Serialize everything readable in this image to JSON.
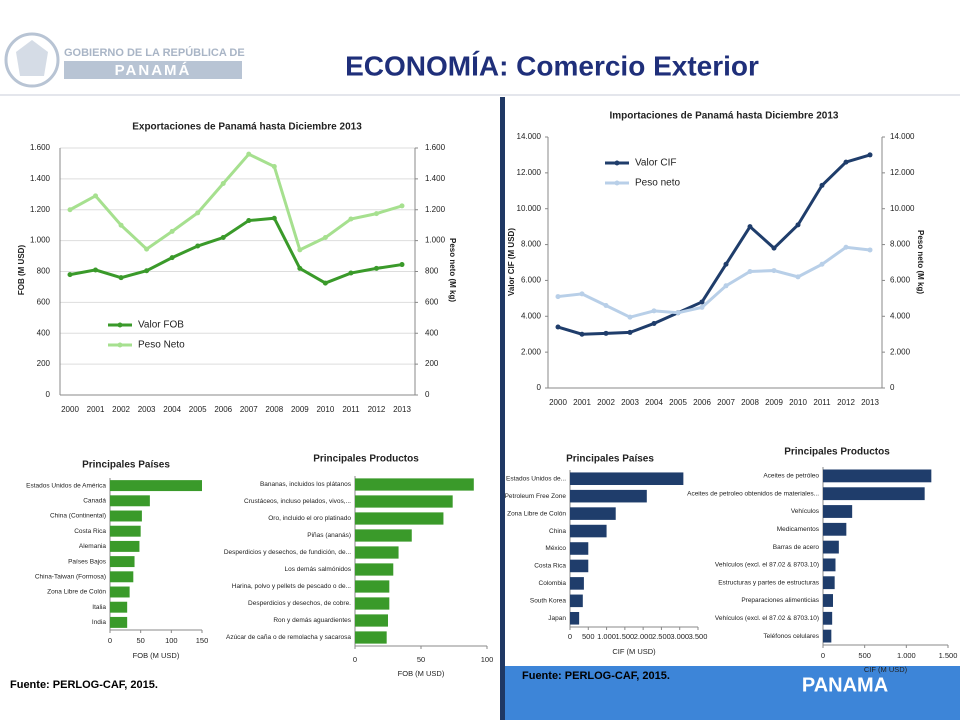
{
  "header": {
    "logo_line1": "GOBIERNO DE LA REPÚBLICA DE",
    "logo_line2": "PANAMÁ",
    "title": "ECONOMÍA: Comercio Exterior"
  },
  "footer": {
    "source_left": "Fuente: PERLOG-CAF, 2015.",
    "source_right": "Fuente: PERLOG-CAF, 2015.",
    "brand": "PANAMA"
  },
  "chart_data": [
    {
      "type": "line",
      "title": "Exportaciones de Panamá hasta Diciembre 2013",
      "categories": [
        "2000",
        "2001",
        "2002",
        "2003",
        "2004",
        "2005",
        "2006",
        "2007",
        "2008",
        "2009",
        "2010",
        "2011",
        "2012",
        "2013"
      ],
      "series": [
        {
          "name": "Valor FOB",
          "color": "#3a9a2a",
          "values": [
            780,
            810,
            760,
            805,
            890,
            965,
            1020,
            1130,
            1145,
            820,
            725,
            790,
            820,
            845
          ]
        },
        {
          "name": "Peso Neto",
          "color": "#a6e08f",
          "axis": "y2",
          "values": [
            1200,
            1290,
            1100,
            945,
            1060,
            1180,
            1370,
            1560,
            1480,
            940,
            1020,
            1140,
            1175,
            1225
          ]
        }
      ],
      "ylabel": "FOB (M USD)",
      "y2label": "Peso neto (M kg)",
      "ylim": [
        0,
        1600
      ],
      "yticks": [
        0,
        200,
        400,
        600,
        800,
        {
          "value": 1000,
          "label": "1.000"
        },
        {
          "value": 1200,
          "label": "1.200"
        },
        {
          "value": 1400,
          "label": "1.400"
        },
        {
          "value": 1600,
          "label": "1.600"
        }
      ],
      "y2lim": [
        0,
        1600
      ],
      "y2ticks": [
        0,
        200,
        400,
        600,
        800,
        {
          "value": 1000,
          "label": "1.000"
        },
        {
          "value": 1200,
          "label": "1.200"
        },
        {
          "value": 1400,
          "label": "1.400"
        },
        {
          "value": 1600,
          "label": "1.600"
        }
      ],
      "grid": true
    },
    {
      "type": "line",
      "title": "Importaciones de Panamá hasta Diciembre 2013",
      "categories": [
        "2000",
        "2001",
        "2002",
        "2003",
        "2004",
        "2005",
        "2006",
        "2007",
        "2008",
        "2009",
        "2010",
        "2011",
        "2012",
        "2013"
      ],
      "series": [
        {
          "name": "Valor CIF",
          "color": "#1f3d6b",
          "values": [
            3400,
            3000,
            3050,
            3100,
            3600,
            4200,
            4800,
            6900,
            9000,
            7800,
            9100,
            11300,
            12600,
            13000
          ]
        },
        {
          "name": "Peso neto",
          "color": "#b8cfe8",
          "axis": "y2",
          "values": [
            5100,
            5250,
            4600,
            3950,
            4300,
            4200,
            4500,
            5700,
            6500,
            6550,
            6200,
            6900,
            7850,
            7700
          ]
        }
      ],
      "ylabel": "Valor CIF (M USD)",
      "y2label": "Peso neto (M kg)",
      "ylim": [
        0,
        14000
      ],
      "yticks": [
        0,
        {
          "value": 2000,
          "label": "2.000"
        },
        {
          "value": 4000,
          "label": "4.000"
        },
        {
          "value": 6000,
          "label": "6.000"
        },
        {
          "value": 8000,
          "label": "8.000"
        },
        {
          "value": 10000,
          "label": "10.000"
        },
        {
          "value": 12000,
          "label": "12.000"
        },
        {
          "value": 14000,
          "label": "14.000"
        }
      ],
      "y2lim": [
        0,
        14000
      ],
      "y2ticks": [
        0,
        {
          "value": 2000,
          "label": "2.000"
        },
        {
          "value": 4000,
          "label": "4.000"
        },
        {
          "value": 6000,
          "label": "6.000"
        },
        {
          "value": 8000,
          "label": "8.000"
        },
        {
          "value": 10000,
          "label": "10.000"
        },
        {
          "value": 12000,
          "label": "12.000"
        },
        {
          "value": 14000,
          "label": "14.000"
        }
      ],
      "grid": false
    },
    {
      "type": "hbar",
      "title": "Principales Países",
      "categories": [
        "Estados Unidos de América",
        "Canadá",
        "China (Continental)",
        "Costa Rica",
        "Alemania",
        "Países Bajos",
        "China-Taiwan (Formosa)",
        "Zona Libre de Colón",
        "Italia",
        "India"
      ],
      "values": [
        150,
        65,
        52,
        50,
        48,
        40,
        38,
        32,
        28,
        28
      ],
      "color": "#3a9a2a",
      "xlabel": "FOB (M USD)",
      "xlim": [
        0,
        150
      ],
      "xticks": [
        0,
        50,
        100,
        150
      ]
    },
    {
      "type": "hbar",
      "title": "Principales Productos",
      "categories": [
        "Bananas, incluidos los plátanos",
        "Crustáceos, incluso pelados, vivos,...",
        "Oro, incluido el oro platinado",
        "Piñas (ananás)",
        "Desperdicios y desechos, de fundición, de...",
        "Los demás salmónidos",
        "Harina, polvo y pellets de pescado o de...",
        "Desperdicios y desechos, de cobre.",
        "Ron y demás aguardientes",
        "Azúcar de caña o de remolacha y sacarosa"
      ],
      "values": [
        90,
        74,
        67,
        43,
        33,
        29,
        26,
        26,
        25,
        24
      ],
      "color": "#3a9a2a",
      "xlabel": "FOB (M USD)",
      "xlim": [
        0,
        100
      ],
      "xticks": [
        0,
        50,
        100
      ]
    },
    {
      "type": "hbar",
      "title": "Principales Países",
      "categories": [
        "Estados Unidos de...",
        "Petroleum Free Zone",
        "Zona Libre de Colón",
        "China",
        "México",
        "Costa Rica",
        "Colombia",
        "South Korea",
        "Japan"
      ],
      "values": [
        3100,
        2100,
        1250,
        1000,
        500,
        500,
        380,
        350,
        250
      ],
      "color": "#1f3d6b",
      "xlabel": "CIF (M USD)",
      "xlim": [
        0,
        3500
      ],
      "xticks": [
        0,
        500,
        {
          "value": 1000,
          "label": "1.000"
        },
        {
          "value": 1500,
          "label": "1.500"
        },
        {
          "value": 2000,
          "label": "2.000"
        },
        {
          "value": 2500,
          "label": "2.500"
        },
        {
          "value": 3000,
          "label": "3.000"
        },
        {
          "value": 3500,
          "label": "3.500"
        }
      ]
    },
    {
      "type": "hbar",
      "title": "Principales Productos",
      "categories": [
        "Aceites de petróleo",
        "Aceites de petroleo obtenidos de materiales...",
        "Vehículos",
        "Medicamentos",
        "Barras de acero",
        "Vehículos (excl. el 87.02 & 8703.10)",
        "Estructuras y partes de estructuras",
        "Preparaciones alimenticias",
        "Vehículos (excl. el 87.02 & 8703.10)",
        "Teléfonos celulares"
      ],
      "values": [
        1300,
        1220,
        350,
        280,
        190,
        150,
        140,
        120,
        110,
        100
      ],
      "color": "#1f3d6b",
      "xlabel": "CIF (M USD)",
      "xlim": [
        0,
        1500
      ],
      "xticks": [
        0,
        500,
        {
          "value": 1000,
          "label": "1.000"
        },
        {
          "value": 1500,
          "label": "1.500"
        }
      ]
    }
  ]
}
